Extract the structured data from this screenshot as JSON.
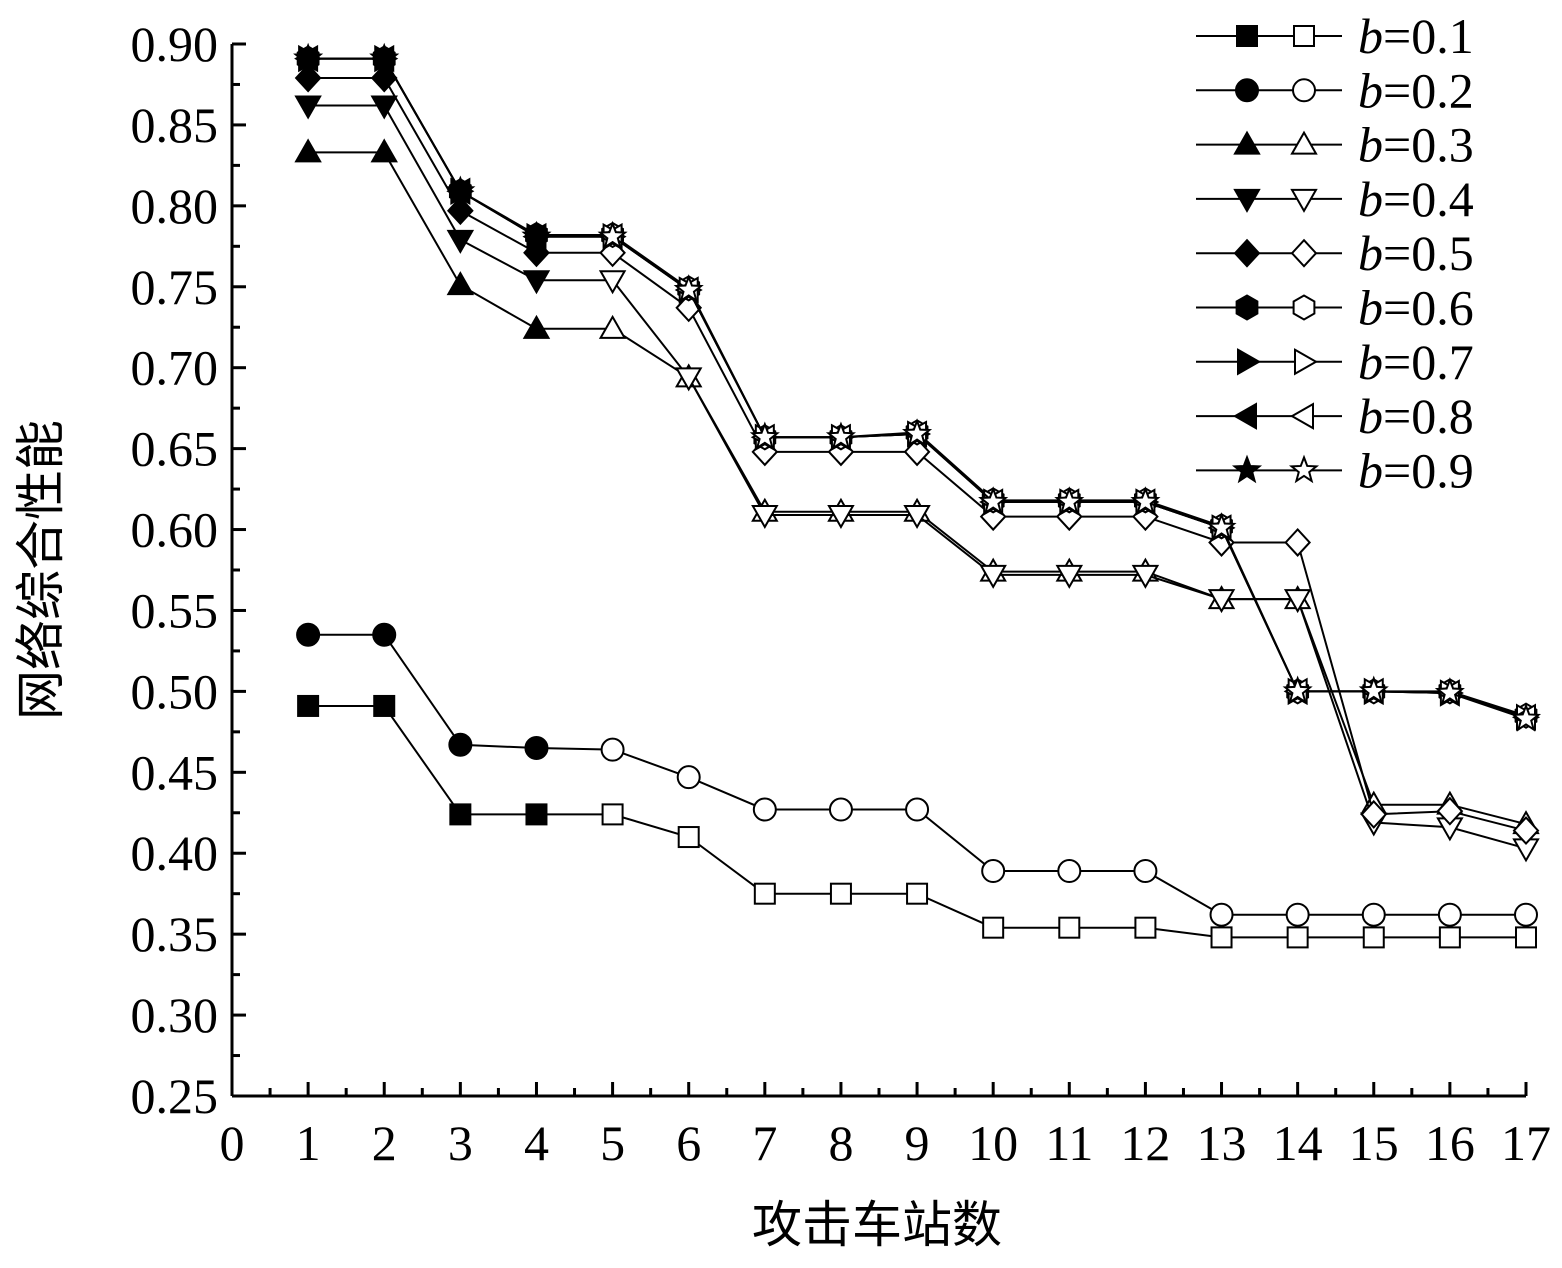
{
  "chart_data": {
    "type": "line",
    "xlabel": "攻击车站数",
    "ylabel": "网络综合性能",
    "xlim": [
      0,
      17
    ],
    "ylim": [
      0.25,
      0.9
    ],
    "xticks": [
      "0",
      "1",
      "2",
      "3",
      "4",
      "5",
      "6",
      "7",
      "8",
      "9",
      "10",
      "11",
      "12",
      "13",
      "14",
      "15",
      "16",
      "17"
    ],
    "yticks": [
      "0.25",
      "0.30",
      "0.35",
      "0.40",
      "0.45",
      "0.50",
      "0.55",
      "0.60",
      "0.65",
      "0.70",
      "0.75",
      "0.80",
      "0.85",
      "0.90"
    ],
    "legend_position": "top-right",
    "x": [
      1,
      2,
      3,
      4,
      5,
      6,
      7,
      8,
      9,
      10,
      11,
      12,
      13,
      14,
      15,
      16,
      17
    ],
    "series": [
      {
        "name": "b=0.1",
        "var": "b",
        "val": "=0.1",
        "marker": "square",
        "values": [
          0.491,
          0.491,
          0.424,
          0.424,
          0.424,
          0.41,
          0.375,
          0.375,
          0.375,
          0.354,
          0.354,
          0.354,
          0.348,
          0.348,
          0.348,
          0.348,
          0.348
        ]
      },
      {
        "name": "b=0.2",
        "var": "b",
        "val": "=0.2",
        "marker": "circle",
        "values": [
          0.535,
          0.535,
          0.467,
          0.465,
          0.464,
          0.447,
          0.427,
          0.427,
          0.427,
          0.389,
          0.389,
          0.389,
          0.362,
          0.362,
          0.362,
          0.362,
          0.362
        ]
      },
      {
        "name": "b=0.3",
        "var": "b",
        "val": "=0.3",
        "marker": "triangle-up",
        "values": [
          0.833,
          0.833,
          0.751,
          0.724,
          0.724,
          0.694,
          0.611,
          0.611,
          0.611,
          0.574,
          0.574,
          0.574,
          0.557,
          0.557,
          0.43,
          0.43,
          0.418
        ]
      },
      {
        "name": "b=0.4",
        "var": "b",
        "val": "=0.4",
        "marker": "triangle-down",
        "values": [
          0.862,
          0.862,
          0.779,
          0.754,
          0.754,
          0.694,
          0.609,
          0.609,
          0.609,
          0.572,
          0.572,
          0.572,
          0.557,
          0.557,
          0.419,
          0.416,
          0.403
        ]
      },
      {
        "name": "b=0.5",
        "var": "b",
        "val": "=0.5",
        "marker": "diamond",
        "values": [
          0.879,
          0.879,
          0.797,
          0.771,
          0.771,
          0.737,
          0.648,
          0.648,
          0.648,
          0.608,
          0.608,
          0.608,
          0.592,
          0.592,
          0.424,
          0.426,
          0.414
        ]
      },
      {
        "name": "b=0.6",
        "var": "b",
        "val": "=0.6",
        "marker": "hexagon",
        "values": [
          0.891,
          0.891,
          0.809,
          0.782,
          0.782,
          0.749,
          0.657,
          0.657,
          0.66,
          0.618,
          0.618,
          0.618,
          0.602,
          0.5,
          0.5,
          0.5,
          0.485
        ]
      },
      {
        "name": "b=0.7",
        "var": "b",
        "val": "=0.7",
        "marker": "triangle-right",
        "values": [
          0.891,
          0.891,
          0.809,
          0.781,
          0.781,
          0.748,
          0.657,
          0.657,
          0.659,
          0.617,
          0.617,
          0.617,
          0.601,
          0.5,
          0.5,
          0.499,
          0.484
        ]
      },
      {
        "name": "b=0.8",
        "var": "b",
        "val": "=0.8",
        "marker": "triangle-left",
        "values": [
          0.891,
          0.891,
          0.809,
          0.781,
          0.781,
          0.748,
          0.657,
          0.657,
          0.659,
          0.617,
          0.617,
          0.617,
          0.601,
          0.5,
          0.5,
          0.499,
          0.484
        ]
      },
      {
        "name": "b=0.9",
        "var": "b",
        "val": "=0.9",
        "marker": "star",
        "values": [
          0.891,
          0.891,
          0.809,
          0.781,
          0.781,
          0.748,
          0.657,
          0.657,
          0.659,
          0.617,
          0.617,
          0.617,
          0.601,
          0.5,
          0.5,
          0.499,
          0.483
        ]
      }
    ],
    "filled_points_first": 4
  }
}
